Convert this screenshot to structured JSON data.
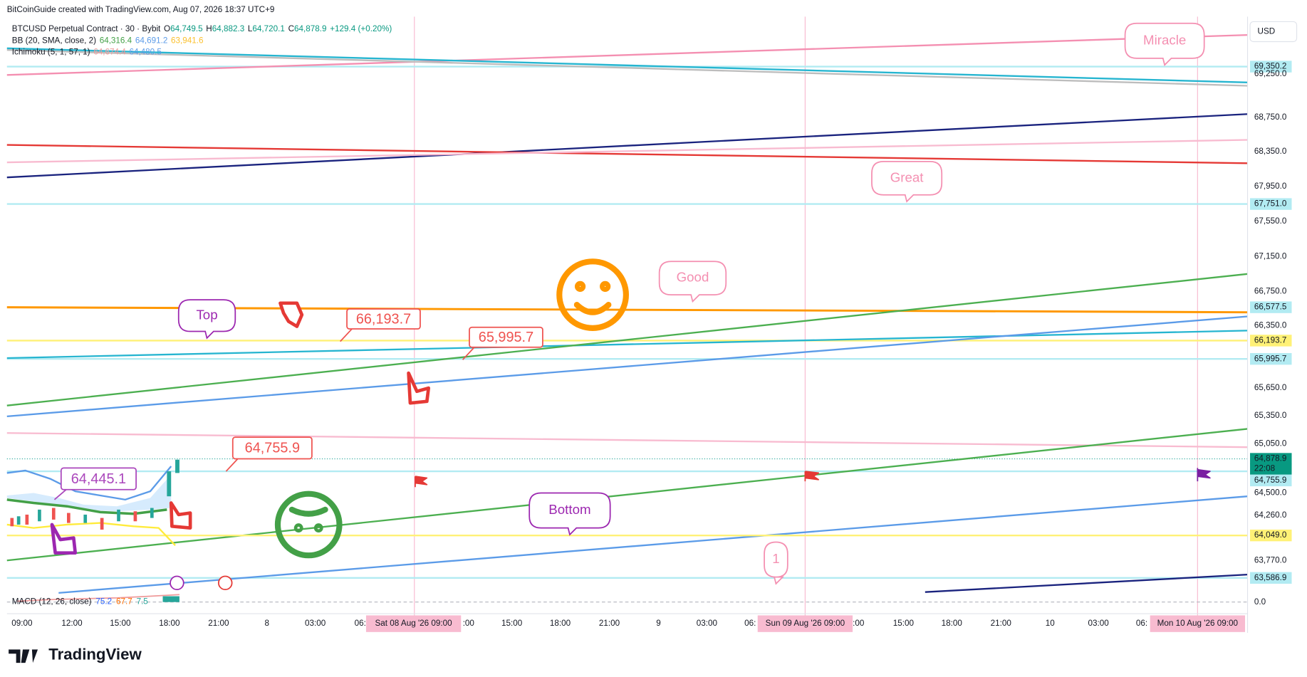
{
  "header": {
    "credit": "BitCoinGuide created with TradingView.com, Aug 07, 2026 18:37 UTC+9"
  },
  "legend": [
    {
      "name": "BTCUSD Perpetual Contract · 30 · Bybit",
      "items": [
        {
          "label": "O",
          "value": "64,749.5"
        },
        {
          "label": "H",
          "value": "64,882.3"
        },
        {
          "label": "L",
          "value": "64,720.1"
        },
        {
          "label": "C",
          "value": "64,878.9"
        },
        {
          "label": "",
          "value": "+129.4 (+0.20%)"
        }
      ]
    },
    {
      "name": "BB (20, SMA, close, 2)",
      "items": [
        {
          "label": "",
          "value": "64,316.4"
        },
        {
          "label": "",
          "value": "64,691.2"
        },
        {
          "label": "",
          "value": "63,941.6"
        }
      ]
    },
    {
      "name": "Ichimoku (5, 1, 57, 1)",
      "items": [
        {
          "label": "",
          "value": "64,674.4"
        },
        {
          "label": "",
          "value": "64,480.5"
        }
      ]
    }
  ],
  "macd": {
    "name": "MACD (12, 26, close)",
    "items": [
      "75.2",
      "67.7",
      "7.5"
    ]
  },
  "currency": "USD",
  "price_axis": [
    {
      "text": "69,350.2",
      "style": "highlight"
    },
    {
      "text": "69,250.0",
      "style": "plain"
    },
    {
      "text": "68,750.0",
      "style": "plain"
    },
    {
      "text": "68,350.0",
      "style": "plain"
    },
    {
      "text": "67,950.0",
      "style": "plain"
    },
    {
      "text": "67,751.0",
      "style": "highlight"
    },
    {
      "text": "67,550.0",
      "style": "plain"
    },
    {
      "text": "67,150.0",
      "style": "plain"
    },
    {
      "text": "66,750.0",
      "style": "plain"
    },
    {
      "text": "66,577.5",
      "style": "highlight"
    },
    {
      "text": "66,350.0",
      "style": "plain"
    },
    {
      "text": "66,193.7",
      "style": "yellow"
    },
    {
      "text": "65,995.7",
      "style": "highlight"
    },
    {
      "text": "65,650.0",
      "style": "plain"
    },
    {
      "text": "65,350.0",
      "style": "plain"
    },
    {
      "text": "65,050.0",
      "style": "plain"
    },
    {
      "text": "64,878.9",
      "style": "green"
    },
    {
      "text": "22:08",
      "style": "green"
    },
    {
      "text": "64,755.9",
      "style": "highlight"
    },
    {
      "text": "64,500.0",
      "style": "plain"
    },
    {
      "text": "64,260.0",
      "style": "plain"
    },
    {
      "text": "64,049.0",
      "style": "yellow"
    },
    {
      "text": "63,770.0",
      "style": "plain"
    },
    {
      "text": "63,586.9",
      "style": "highlight"
    },
    {
      "text": "0.0",
      "style": "plain"
    }
  ],
  "time_axis": [
    {
      "text": "09:00",
      "style": "plain"
    },
    {
      "text": "12:00",
      "style": "plain"
    },
    {
      "text": "15:00",
      "style": "plain"
    },
    {
      "text": "18:00",
      "style": "plain"
    },
    {
      "text": "21:00",
      "style": "plain"
    },
    {
      "text": "8",
      "style": "plain"
    },
    {
      "text": "03:00",
      "style": "plain"
    },
    {
      "text": "06:",
      "style": "plain"
    },
    {
      "text": "Sat 08 Aug '26   09:00",
      "style": "highlight"
    },
    {
      "text": ":00",
      "style": "plain"
    },
    {
      "text": "15:00",
      "style": "plain"
    },
    {
      "text": "18:00",
      "style": "plain"
    },
    {
      "text": "21:00",
      "style": "plain"
    },
    {
      "text": "9",
      "style": "plain"
    },
    {
      "text": "03:00",
      "style": "plain"
    },
    {
      "text": "06:",
      "style": "plain"
    },
    {
      "text": "Sun 09 Aug '26   09:00",
      "style": "highlight"
    },
    {
      "text": ":00",
      "style": "plain"
    },
    {
      "text": "15:00",
      "style": "plain"
    },
    {
      "text": "18:00",
      "style": "plain"
    },
    {
      "text": "21:00",
      "style": "plain"
    },
    {
      "text": "10",
      "style": "plain"
    },
    {
      "text": "03:00",
      "style": "plain"
    },
    {
      "text": "06:",
      "style": "plain"
    },
    {
      "text": "Mon 10 Aug '26   09:00",
      "style": "highlight"
    }
  ],
  "annotations": [
    {
      "text": "Miracle",
      "color": "#f48fb1"
    },
    {
      "text": "Great",
      "color": "#f48fb1"
    },
    {
      "text": "Good",
      "color": "#f48fb1"
    },
    {
      "text": "Top",
      "color": "#9c27b0"
    },
    {
      "text": "Bottom",
      "color": "#9c27b0"
    },
    {
      "text": "1",
      "color": "#f48fb1"
    }
  ],
  "price_tags": [
    {
      "text": "66,193.7",
      "color": "#ef5350"
    },
    {
      "text": "65,995.7",
      "color": "#ef5350"
    },
    {
      "text": "64,755.9",
      "color": "#ef5350"
    },
    {
      "text": "64,445.1",
      "color": "#ab47bc"
    }
  ],
  "footer": {
    "brand": "TradingView"
  }
}
